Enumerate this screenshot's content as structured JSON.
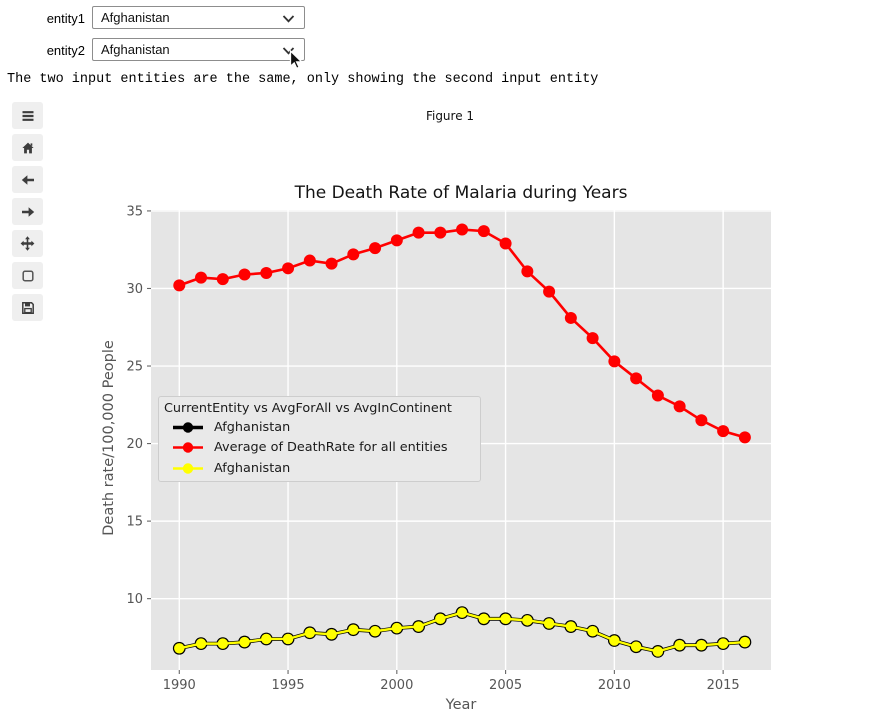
{
  "header": {
    "entity1_label": "entity1",
    "entity2_label": "entity2",
    "entity1_value": "Afghanistan",
    "entity2_value": "Afghanistan",
    "message": "The two input entities are the same, only showing the second input entity"
  },
  "figure": {
    "caption": "Figure 1"
  },
  "toolbar": {
    "items": [
      "menu-icon",
      "home-icon",
      "back-arrow-icon",
      "forward-arrow-icon",
      "pan-move-icon",
      "zoom-rect-icon",
      "save-icon"
    ]
  },
  "chart_data": {
    "type": "line",
    "title": "The Death Rate of Malaria during Years",
    "xlabel": "Year",
    "ylabel": "Death rate/100,000 People",
    "x": [
      1990,
      1991,
      1992,
      1993,
      1994,
      1995,
      1996,
      1997,
      1998,
      1999,
      2000,
      2001,
      2002,
      2003,
      2004,
      2005,
      2006,
      2007,
      2008,
      2009,
      2010,
      2011,
      2012,
      2013,
      2014,
      2015,
      2016
    ],
    "series": [
      {
        "name": "Afghanistan",
        "color": "#000000",
        "note": "hidden beneath identical yellow series, visible only as dark marker rims",
        "values": [
          6.8,
          7.1,
          7.1,
          7.2,
          7.4,
          7.4,
          7.8,
          7.7,
          8.0,
          7.9,
          8.1,
          8.2,
          8.7,
          9.1,
          8.7,
          8.7,
          8.6,
          8.4,
          8.2,
          7.9,
          7.3,
          6.9,
          6.6,
          7.0,
          7.0,
          7.1,
          7.2
        ]
      },
      {
        "name": "Average of DeathRate for all entities",
        "color": "#ff0000",
        "values": [
          30.2,
          30.7,
          30.6,
          30.9,
          31.0,
          31.3,
          31.8,
          31.6,
          32.2,
          32.6,
          33.1,
          33.6,
          33.6,
          33.8,
          33.7,
          32.9,
          31.1,
          29.8,
          28.1,
          26.8,
          25.3,
          24.2,
          23.1,
          22.4,
          21.5,
          20.8,
          20.4
        ]
      },
      {
        "name": "Afghanistan",
        "color": "#ffff00",
        "values": [
          6.8,
          7.1,
          7.1,
          7.2,
          7.4,
          7.4,
          7.8,
          7.7,
          8.0,
          7.9,
          8.1,
          8.2,
          8.7,
          9.1,
          8.7,
          8.7,
          8.6,
          8.4,
          8.2,
          7.9,
          7.3,
          6.9,
          6.6,
          7.0,
          7.0,
          7.1,
          7.2
        ]
      }
    ],
    "x_ticks": [
      1990,
      1995,
      2000,
      2005,
      2010,
      2015
    ],
    "y_ticks": [
      10,
      15,
      20,
      25,
      30,
      35
    ],
    "xlim": [
      1988.7,
      2017.2
    ],
    "ylim": [
      5.4,
      35.06
    ],
    "grid": true,
    "plot_bg": "#e5e5e5",
    "grid_color": "#ffffff",
    "legend": {
      "title": "CurrentEntity vs AvgForAll vs AvgInContinent",
      "position": "middle-left"
    }
  }
}
